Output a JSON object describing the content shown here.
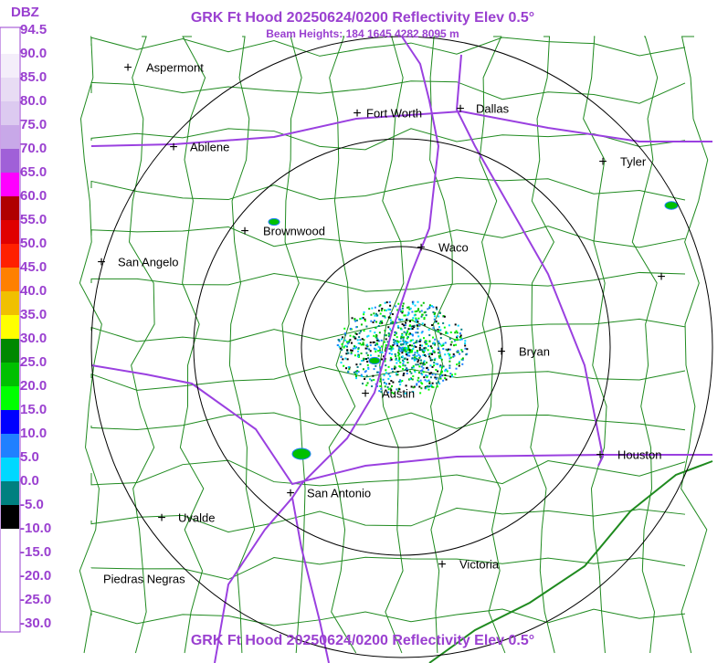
{
  "header": {
    "title": "GRK Ft Hood 20250624/0200 Reflectivity Elev 0.5°",
    "subtitle": "Beam Heights: 184 1645 4282 8095 m"
  },
  "footer": {
    "title": "GRK Ft Hood 20250624/0200 Reflectivity Elev 0.5°"
  },
  "legend": {
    "unit": "DBZ",
    "entries": [
      {
        "label": "94.5",
        "color": "#ffffff"
      },
      {
        "label": "90.0",
        "color": "#f4eefa"
      },
      {
        "label": "85.0",
        "color": "#e8dcf4"
      },
      {
        "label": "80.0",
        "color": "#dccaf0"
      },
      {
        "label": "75.0",
        "color": "#c8a8e8"
      },
      {
        "label": "70.0",
        "color": "#a060d8"
      },
      {
        "label": "65.0",
        "color": "#ff00ff"
      },
      {
        "label": "60.0",
        "color": "#b00000"
      },
      {
        "label": "55.0",
        "color": "#e00000"
      },
      {
        "label": "50.0",
        "color": "#ff2000"
      },
      {
        "label": "45.0",
        "color": "#ff8000"
      },
      {
        "label": "40.0",
        "color": "#f0c000"
      },
      {
        "label": "35.0",
        "color": "#ffff00"
      },
      {
        "label": "30.0",
        "color": "#008800"
      },
      {
        "label": "25.0",
        "color": "#00c000"
      },
      {
        "label": "20.0",
        "color": "#00ff00"
      },
      {
        "label": "15.0",
        "color": "#0000ff"
      },
      {
        "label": "10.0",
        "color": "#2080ff"
      },
      {
        "label": "5.0",
        "color": "#00d8ff"
      },
      {
        "label": "0.0",
        "color": "#008080"
      },
      {
        "label": "-5.0",
        "color": "#000000"
      },
      {
        "label": "-10.0",
        "color": "#ffffff"
      },
      {
        "label": "-15.0",
        "color": "#ffffff"
      },
      {
        "label": "-20.0",
        "color": "#ffffff"
      },
      {
        "label": "-25.0",
        "color": "#ffffff"
      },
      {
        "label": "-30.0",
        "color": "#ffffff"
      }
    ]
  },
  "cities": [
    "Aspermont",
    "Fort Worth",
    "Dallas",
    "Abilene",
    "Tyler",
    "Brownwood",
    "Waco",
    "San Angelo",
    "Bryan",
    "Austin",
    "Houston",
    "San Antonio",
    "Uvalde",
    "Victoria",
    "Piedras Negras"
  ]
}
